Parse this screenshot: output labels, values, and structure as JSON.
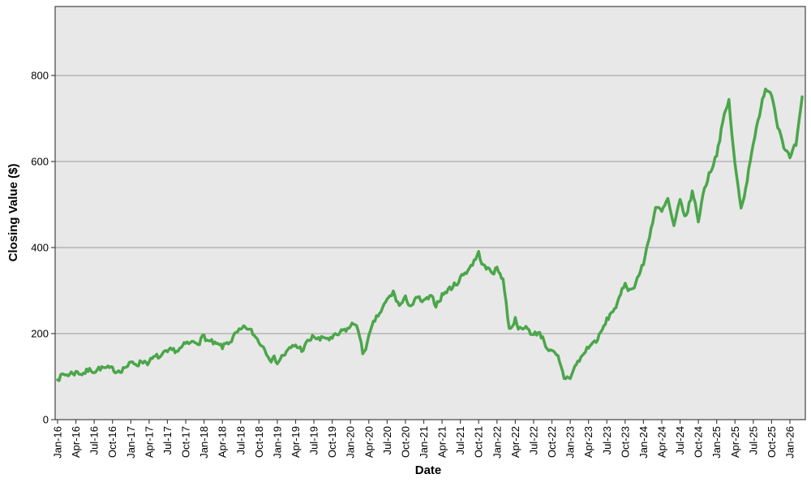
{
  "chart_data": {
    "type": "line",
    "title": "",
    "xlabel": "Date",
    "ylabel": "Closing Value ($)",
    "legend": null,
    "grid": "horizontal",
    "plot_bg": "#e8e8e8",
    "grid_color": "#9a9a9a",
    "border_color": "#444444",
    "ylim": [
      0,
      960
    ],
    "y_ticks": [
      0,
      200,
      400,
      600,
      800
    ],
    "x_tick_labels": [
      "Jan-16",
      "Apr-16",
      "Jul-16",
      "Oct-16",
      "Jan-17",
      "Apr-17",
      "Jul-17",
      "Oct-17",
      "Jan-18",
      "Apr-18",
      "Jul-18",
      "Oct-18",
      "Jan-19",
      "Apr-19",
      "Jul-19",
      "Oct-19",
      "Jan-20",
      "Apr-20",
      "Jul-20",
      "Oct-20",
      "Jan-21",
      "Apr-21",
      "Jul-21",
      "Oct-21",
      "Jan-22",
      "Apr-22",
      "Jul-22",
      "Oct-22",
      "Jan-23",
      "Apr-23",
      "Jul-23",
      "Oct-23",
      "Jan-24",
      "Apr-24",
      "Jul-24",
      "Oct-24",
      "Jan-25",
      "Apr-25",
      "Jul-25",
      "Oct-25",
      "Jan-26"
    ],
    "x_tick_interval_months": 3,
    "series": [
      {
        "name": "Closing Value",
        "color": "#4ba64a",
        "start_month": "Jan-16",
        "monthly_values": [
          100,
          103,
          107,
          111,
          109,
          113,
          117,
          120,
          117,
          113,
          117,
          123,
          128,
          132,
          137,
          135,
          142,
          147,
          152,
          158,
          164,
          172,
          177,
          184,
          192,
          179,
          171,
          167,
          180,
          194,
          204,
          213,
          199,
          183,
          166,
          145,
          136,
          150,
          161,
          172,
          163,
          178,
          194,
          184,
          191,
          186,
          196,
          206,
          216,
          226,
          152,
          190,
          228,
          252,
          275,
          295,
          265,
          278,
          268,
          280,
          272,
          282,
          268,
          291,
          301,
          312,
          330,
          346,
          364,
          385,
          352,
          345,
          350,
          330,
          210,
          235,
          205,
          215,
          195,
          205,
          175,
          155,
          140,
          96,
          100,
          128,
          148,
          170,
          180,
          198,
          230,
          255,
          275,
          318,
          300,
          330,
          360,
          430,
          495,
          480,
          510,
          445,
          505,
          470,
          530,
          465,
          540,
          580,
          620,
          690,
          740,
          590,
          490,
          560,
          650,
          700,
          775,
          760,
          690,
          640,
          605,
          635,
          740
        ]
      }
    ],
    "line_style": {
      "width": 3.5,
      "noisy_daily": true,
      "noise_amplitude": 9
    }
  }
}
